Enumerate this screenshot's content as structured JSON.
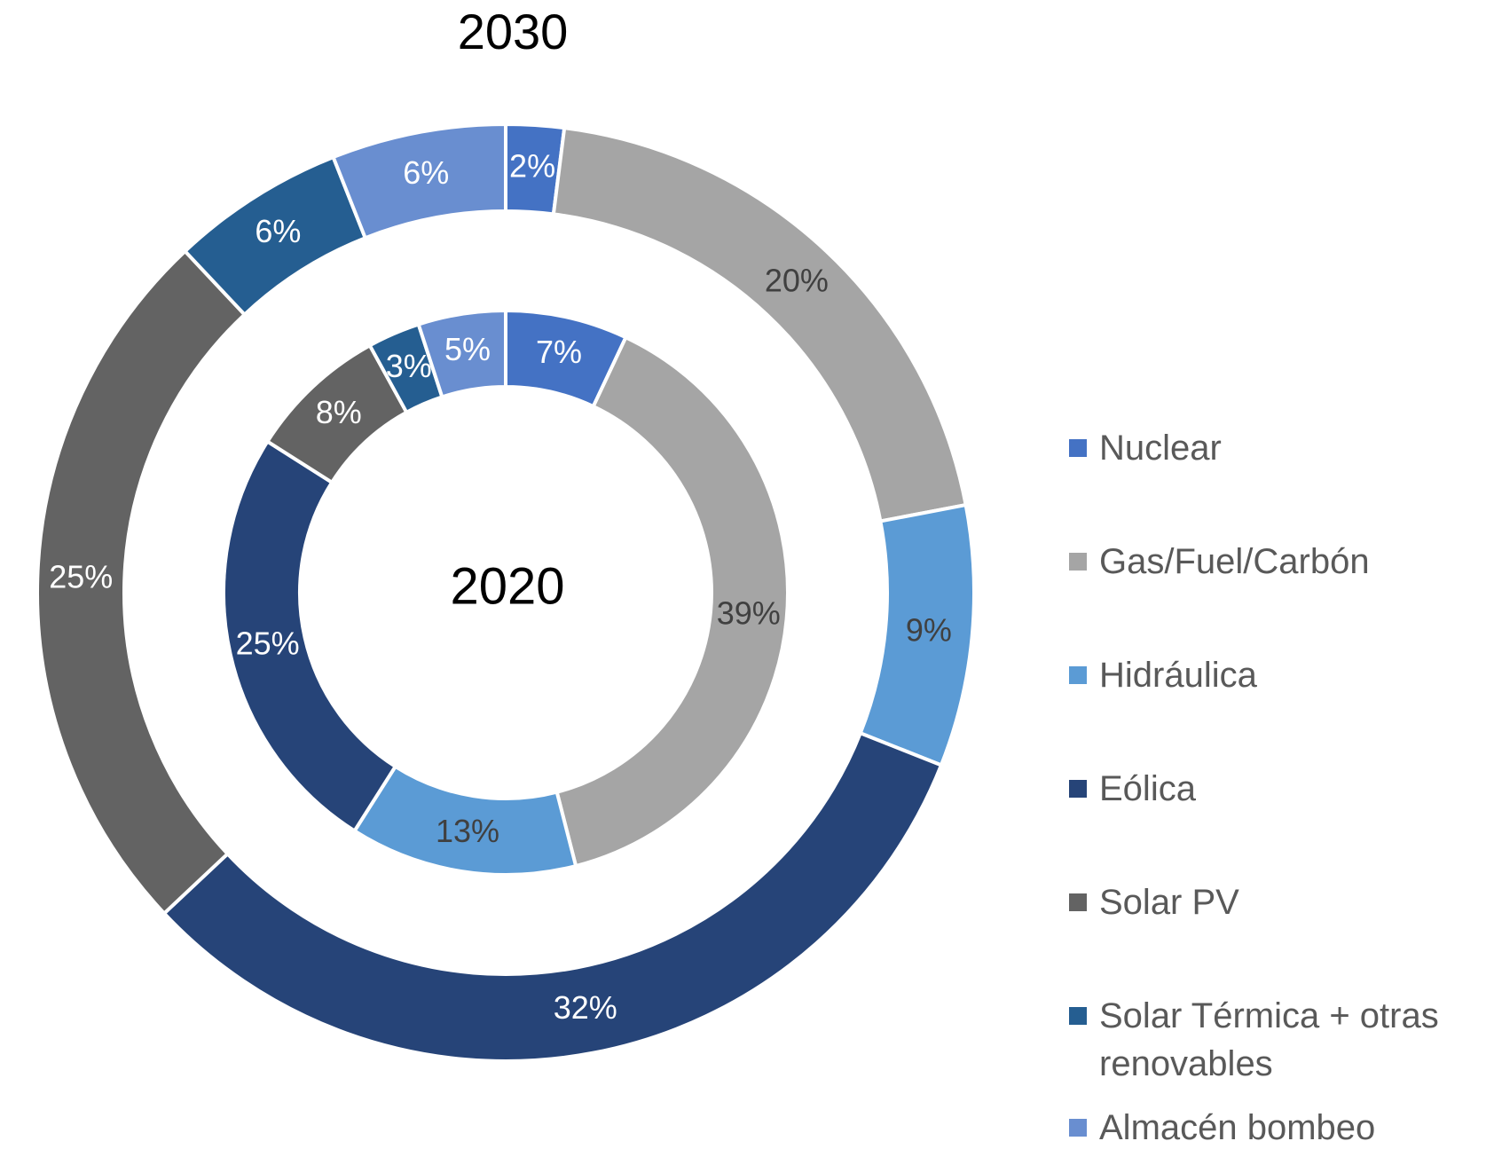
{
  "chart_data": {
    "type": "donut",
    "categories": [
      "Nuclear",
      "Gas/Fuel/Carbón",
      "Hidráulica",
      "Eólica",
      "Solar PV",
      "Solar Térmica + otras renovables",
      "Almacén bombeo"
    ],
    "colors": [
      "#4472c4",
      "#a5a5a5",
      "#5b9bd5",
      "#264478",
      "#636363",
      "#255e91",
      "#698ed0"
    ],
    "series": [
      {
        "name": "2030",
        "values": [
          2,
          20,
          9,
          32,
          25,
          6,
          6
        ],
        "value_labels": [
          "2%",
          "20%",
          "9%",
          "32%",
          "25%",
          "6%",
          "6%"
        ]
      },
      {
        "name": "2020",
        "values": [
          7,
          39,
          13,
          25,
          8,
          3,
          5
        ],
        "value_labels": [
          "7%",
          "39%",
          "13%",
          "25%",
          "8%",
          "3%",
          "5%"
        ]
      }
    ],
    "legend": "right"
  }
}
